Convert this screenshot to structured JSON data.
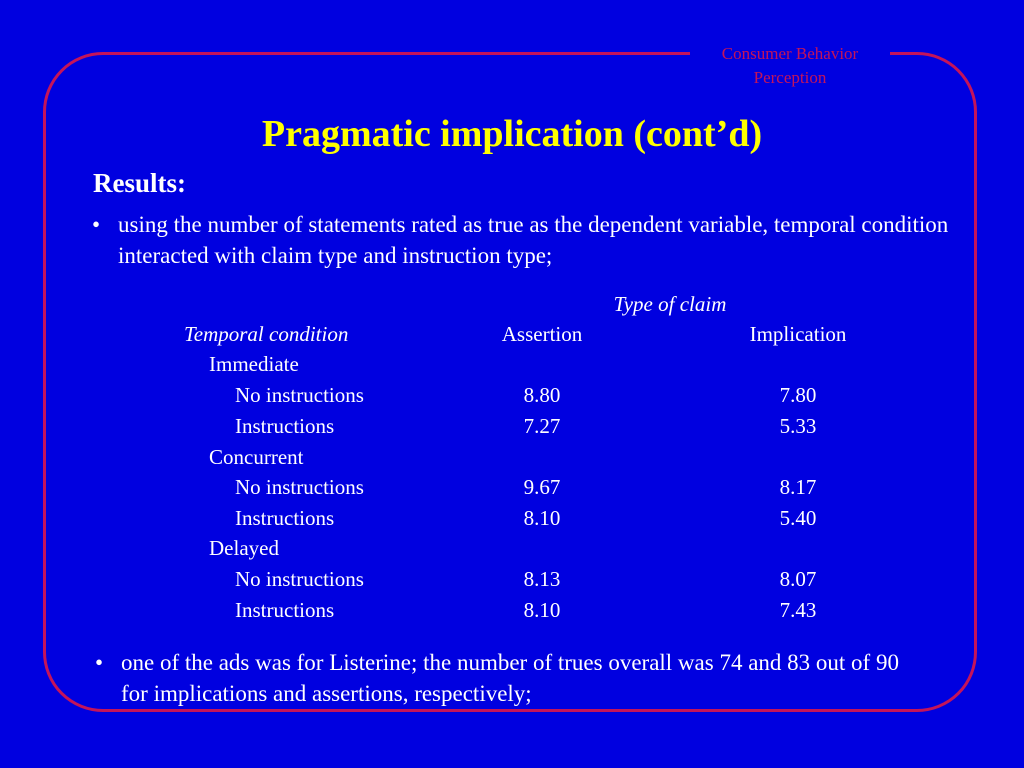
{
  "header": {
    "line1": "Consumer Behavior",
    "line2": "Perception"
  },
  "title": "Pragmatic implication (cont’d)",
  "results_heading": "Results:",
  "bullets": [
    {
      "symbol": "•",
      "text": "using the number of statements rated as true as the dependent variable, temporal condition interacted with claim type and instruction type;"
    },
    {
      "symbol": "•",
      "text": "one of the ads was for Listerine; the number of trues overall was 74 and 83 out of 90 for implications and assertions, respectively;"
    }
  ],
  "table": {
    "group_header": "Type of claim",
    "row_header": "Temporal condition",
    "col_assertion": "Assertion",
    "col_implication": "Implication",
    "groups": [
      {
        "name": "Immediate",
        "rows": [
          {
            "label": "No instructions",
            "assertion": "8.80",
            "implication": "7.80"
          },
          {
            "label": "Instructions",
            "assertion": "7.27",
            "implication": "5.33"
          }
        ]
      },
      {
        "name": "Concurrent",
        "rows": [
          {
            "label": "No instructions",
            "assertion": "9.67",
            "implication": "8.17"
          },
          {
            "label": "Instructions",
            "assertion": "8.10",
            "implication": "5.40"
          }
        ]
      },
      {
        "name": "Delayed",
        "rows": [
          {
            "label": "No instructions",
            "assertion": "8.13",
            "implication": "8.07"
          },
          {
            "label": "Instructions",
            "assertion": "8.10",
            "implication": "7.43"
          }
        ]
      }
    ]
  }
}
